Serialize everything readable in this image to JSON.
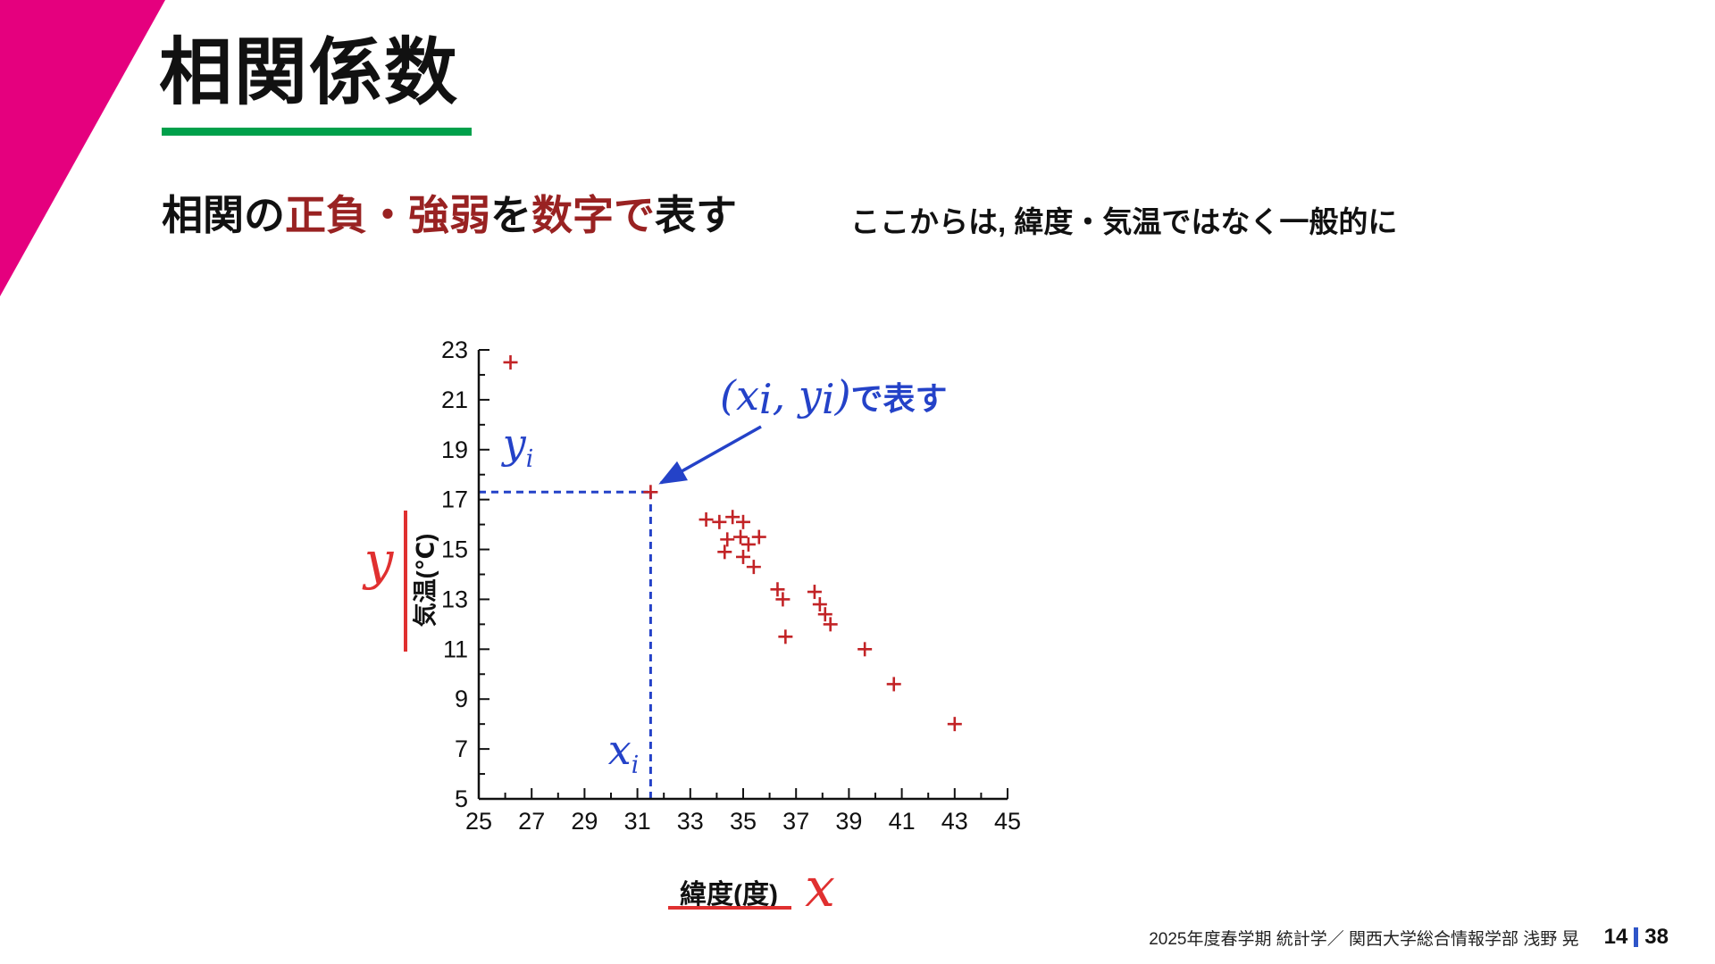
{
  "slide": {
    "title": "相関係数",
    "heading": {
      "part1": "相関の",
      "part2": "正負・強弱",
      "part3": "を",
      "part4": "数字で",
      "part5": "表す"
    },
    "side_note": "ここからは, 緯度・気温ではなく一般的に",
    "footer": {
      "credit": "2025年度春学期  統計学／ 関西大学総合情報学部 浅野 晃",
      "page_current": "14",
      "page_total": "38"
    },
    "colors": {
      "accent_magenta": "#E5007E",
      "accent_green": "#00A04B",
      "heading_red": "#992222",
      "point_red": "#C22326",
      "guide_blue": "#2442C8",
      "axis_label_red": "#E03030"
    }
  },
  "chart_data": {
    "type": "scatter",
    "xlabel": "緯度(度)",
    "ylabel": "気温(℃)",
    "x_var": "x",
    "y_var": "y",
    "xlim": [
      25,
      45
    ],
    "ylim": [
      5,
      23
    ],
    "x_ticks": [
      25,
      27,
      29,
      31,
      33,
      35,
      37,
      39,
      41,
      43,
      45
    ],
    "y_ticks": [
      5,
      7,
      9,
      11,
      13,
      15,
      17,
      19,
      21,
      23
    ],
    "grid": false,
    "marker": "plus",
    "points": [
      [
        26.2,
        22.5
      ],
      [
        31.5,
        17.3
      ],
      [
        33.6,
        16.2
      ],
      [
        34.1,
        16.1
      ],
      [
        34.6,
        16.3
      ],
      [
        35.0,
        16.1
      ],
      [
        34.4,
        15.4
      ],
      [
        34.9,
        15.5
      ],
      [
        35.2,
        15.2
      ],
      [
        35.6,
        15.5
      ],
      [
        34.3,
        14.9
      ],
      [
        35.0,
        14.7
      ],
      [
        35.4,
        14.3
      ],
      [
        36.3,
        13.4
      ],
      [
        36.5,
        13.0
      ],
      [
        37.7,
        13.3
      ],
      [
        37.9,
        12.8
      ],
      [
        38.1,
        12.4
      ],
      [
        38.3,
        12.0
      ],
      [
        36.6,
        11.5
      ],
      [
        39.6,
        11.0
      ],
      [
        40.7,
        9.6
      ],
      [
        43.0,
        8.0
      ]
    ],
    "highlight": {
      "x": 31.5,
      "y": 17.3
    },
    "annotation": {
      "open": "(",
      "x": "x",
      "x_sub": "i",
      "sep": ", ",
      "y": "y",
      "y_sub": "i",
      "close": ")",
      "suffix": "で表す"
    },
    "guide_labels": {
      "y_main": "y",
      "y_sub": "i",
      "x_main": "x",
      "x_sub": "i"
    }
  }
}
